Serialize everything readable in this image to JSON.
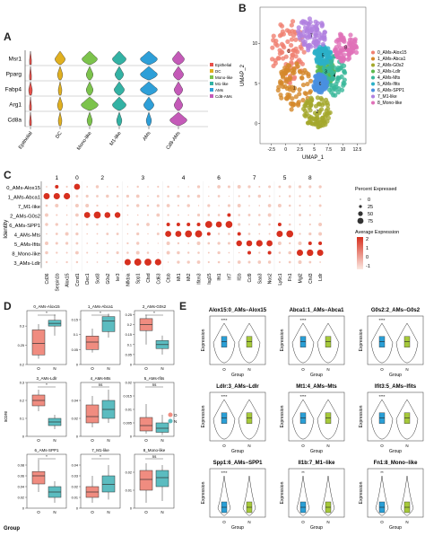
{
  "panels": {
    "A": {
      "label": "A"
    },
    "B": {
      "label": "B"
    },
    "C": {
      "label": "C"
    },
    "D": {
      "label": "D"
    },
    "E": {
      "label": "E"
    }
  },
  "colors": {
    "epithelial": "#e8504a",
    "dc": "#e0b020",
    "mono": "#7cc34c",
    "m1": "#33b2a4",
    "ams": "#2e9fd8",
    "cd8": "#c45ab8",
    "group_o": "#f08c80",
    "group_n": "#5bbcc0",
    "dot_high": "#d7301f",
    "dot_low": "#f4c9bd",
    "violin_o": "#2a9fd6",
    "violin_n": "#a6c93a"
  },
  "chart_data": [
    {
      "id": "A",
      "type": "violin",
      "genes": [
        "Msr1",
        "Pparg",
        "Fabp4",
        "Arg1",
        "Cd8a"
      ],
      "categories": [
        "Epithelial",
        "DC",
        "Mono-like",
        "M1-like",
        "AMs",
        "Cd8-AMs"
      ],
      "legend": [
        "Epithelial",
        "DC",
        "Mono-like",
        "M1-like",
        "AMs",
        "Cd8-AMs"
      ]
    },
    {
      "id": "B",
      "type": "scatter",
      "xlabel": "UMAP_1",
      "ylabel": "UMAP_2",
      "xticks": [
        -2.5,
        0.0,
        2.5,
        5.0,
        7.5,
        10.0,
        12.5
      ],
      "yticks": [
        0,
        5,
        10
      ],
      "clusters": [
        "0_AMs-Alox15",
        "1_AMs-Abca1",
        "2_AMs-G0s2",
        "3_AMs-Ldlr",
        "4_AMs-Mts",
        "5_AMs-Ifits",
        "6_AMs-SPP1",
        "7_M1-like",
        "8_Mono-like"
      ],
      "cluster_colors": [
        "#f08070",
        "#d4882a",
        "#a4a82c",
        "#5cb84c",
        "#38b89a",
        "#2cb0c8",
        "#4a90e0",
        "#b080e0",
        "#e070b8"
      ],
      "cluster_labels": [
        "0",
        "1",
        "2",
        "3",
        "4",
        "5",
        "6",
        "7",
        "8"
      ]
    },
    {
      "id": "C",
      "type": "dotplot",
      "ylabel": "Identity",
      "rows": [
        "0_AMs-Alox15",
        "1_AMs-Abca1",
        "7_M1-like",
        "2_AMs-G0s2",
        "6_AMs-SPP1",
        "4_AMs-Mts",
        "5_AMs-Ifits",
        "8_Mono-like",
        "3_AMs-Ldlr"
      ],
      "column_groups": [
        "1",
        "0",
        "2",
        "3",
        "4",
        "6",
        "7",
        "5",
        "8"
      ],
      "genes": [
        "Cd36",
        "Serpin1b",
        "Alox15",
        "Ccnd1",
        "Clec1",
        "Sod3",
        "G0s2",
        "Ier3",
        "Nfkbia",
        "Spp1",
        "Ctsd",
        "Cd63",
        "Ctsb",
        "Mt1",
        "Mt2",
        "Ifitm3",
        "Isg15",
        "Ifit1",
        "Irf7",
        "Il1b",
        "Ccl9",
        "Saa3",
        "Nos2",
        "Ly6c1",
        "Fn1",
        "Mgl2",
        "Chil3",
        "Ldlr"
      ],
      "legend_size_title": "Percent Expressed",
      "legend_size_values": [
        0,
        25,
        50,
        75
      ],
      "legend_color_title": "Average Expression",
      "legend_color_values": [
        2,
        1,
        0,
        -1
      ]
    },
    {
      "id": "D",
      "type": "box",
      "ylabel": "score",
      "xlabel": "Group",
      "groups": [
        "O",
        "N"
      ],
      "legend": [
        "O",
        "N"
      ],
      "subplots": [
        {
          "title": "0_AMs-Alox15",
          "p": "*",
          "ylim": [
            0.2,
            0.34
          ],
          "yticks": [
            0.2,
            0.25,
            0.3
          ],
          "O": [
            0.215,
            0.225,
            0.255,
            0.29,
            0.305
          ],
          "N": [
            0.275,
            0.3,
            0.307,
            0.315,
            0.33
          ]
        },
        {
          "title": "1_AMs-Abca1",
          "p": "*",
          "ylim": [
            0.0,
            0.18
          ],
          "yticks": [
            0.0,
            0.05,
            0.1,
            0.15
          ],
          "O": [
            0.04,
            0.05,
            0.075,
            0.095,
            0.12
          ],
          "N": [
            0.09,
            0.11,
            0.145,
            0.16,
            0.17
          ]
        },
        {
          "title": "2_AMs-G0s2",
          "p": "*",
          "ylim": [
            0.0,
            0.27
          ],
          "yticks": [
            0.0,
            0.05,
            0.1,
            0.15,
            0.2,
            0.25
          ],
          "O": [
            0.1,
            0.17,
            0.2,
            0.23,
            0.25
          ],
          "N": [
            0.05,
            0.08,
            0.1,
            0.12,
            0.145
          ]
        },
        {
          "title": "3_AMs-Ldlr",
          "p": "*",
          "ylim": [
            0.0,
            0.3
          ],
          "yticks": [
            0.0,
            0.1,
            0.2,
            0.3
          ],
          "O": [
            0.14,
            0.17,
            0.2,
            0.23,
            0.26
          ],
          "N": [
            0.04,
            0.06,
            0.08,
            0.1,
            0.12
          ]
        },
        {
          "title": "4_AMs-Mts",
          "p": "ns",
          "ylim": [
            0.0,
            0.06
          ],
          "yticks": [
            0.0,
            0.02,
            0.04
          ],
          "O": [
            0.01,
            0.015,
            0.022,
            0.035,
            0.045
          ],
          "N": [
            0.015,
            0.02,
            0.03,
            0.04,
            0.052
          ]
        },
        {
          "title": "5_AMs-Ifits",
          "p": "ns",
          "ylim": [
            0.0,
            0.02
          ],
          "yticks": [
            0.0,
            0.005,
            0.01,
            0.015,
            0.02
          ],
          "O": [
            0.001,
            0.002,
            0.004,
            0.007,
            0.012
          ],
          "N": [
            0.0005,
            0.0015,
            0.003,
            0.005,
            0.008
          ]
        },
        {
          "title": "6_AMs-SPP1",
          "p": "*",
          "ylim": [
            0.0,
            0.1
          ],
          "yticks": [
            0.0,
            0.02,
            0.04,
            0.06,
            0.08
          ],
          "O": [
            0.03,
            0.045,
            0.06,
            0.068,
            0.09
          ],
          "N": [
            0.01,
            0.02,
            0.03,
            0.04,
            0.05
          ]
        },
        {
          "title": "7_M1-like",
          "p": "*",
          "ylim": [
            0.0,
            0.05
          ],
          "yticks": [
            0.0,
            0.01,
            0.02,
            0.03,
            0.04
          ],
          "O": [
            0.005,
            0.01,
            0.015,
            0.02,
            0.03
          ],
          "N": [
            0.008,
            0.015,
            0.022,
            0.03,
            0.04
          ]
        },
        {
          "title": "8_Mono-like",
          "p": "ns",
          "ylim": [
            0.0,
            0.03
          ],
          "yticks": [
            0.0,
            0.01,
            0.02
          ],
          "O": [
            0.003,
            0.01,
            0.016,
            0.021,
            0.025
          ],
          "N": [
            0.004,
            0.012,
            0.017,
            0.021,
            0.024
          ]
        }
      ]
    },
    {
      "id": "E",
      "type": "violin",
      "ylabel": "Expression",
      "xlabel": "Group",
      "groups": [
        "O",
        "N"
      ],
      "subplots": [
        {
          "title": "Alox15:0_AMs−Alox15",
          "p": "****"
        },
        {
          "title": "Abca1:1_AMs−Abca1",
          "p": "****"
        },
        {
          "title": "G0s2:2_AMs−G0s2",
          "p": "****"
        },
        {
          "title": "Ldlr:3_AMs−Ldlr",
          "p": "****"
        },
        {
          "title": "Mt1:4_AMs−Mts",
          "p": "****"
        },
        {
          "title": "Ifit3:5_AMs−Ifits",
          "p": "****"
        },
        {
          "title": "Spp1:6_AMs−SPP1",
          "p": "****"
        },
        {
          "title": "Il1b:7_M1−like",
          "p": "**"
        },
        {
          "title": "Fn1:8_Mono−like",
          "p": "**"
        }
      ]
    }
  ]
}
